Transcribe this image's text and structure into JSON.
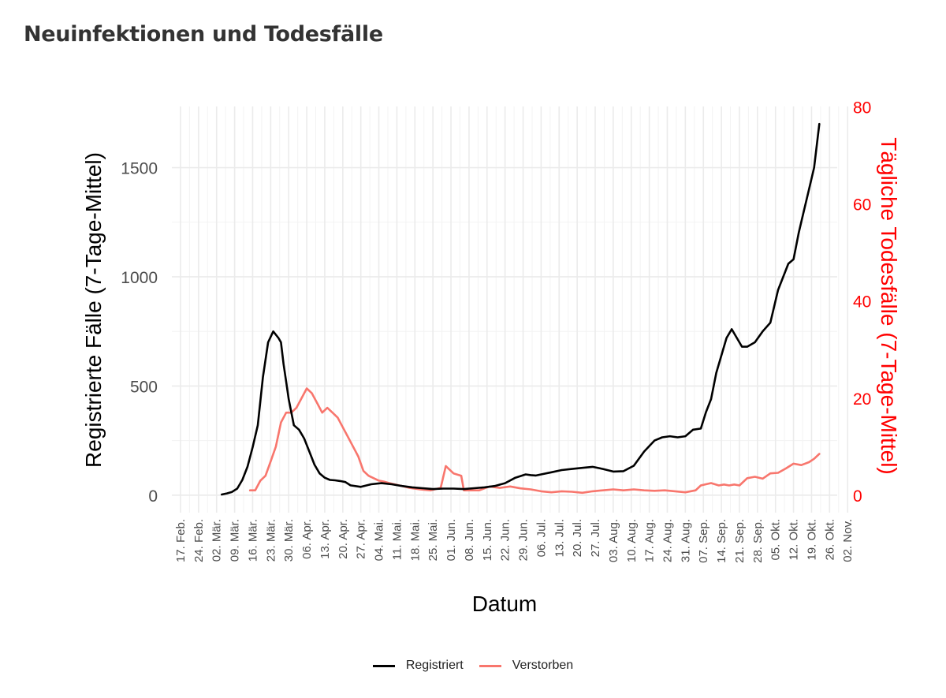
{
  "title": "Neuinfektionen und Todesfälle",
  "chart_data": {
    "type": "line",
    "xlabel": "Datum",
    "ylabel_left": "Registrierte Fälle (7-Tage-Mittel)",
    "ylabel_right": "Tägliche Todesfälle (7-Tage-Mittel)",
    "x_ticks": [
      "17. Feb.",
      "24. Feb.",
      "02. Mär.",
      "09. Mär.",
      "16. Mär.",
      "23. Mär.",
      "30. Mär.",
      "06. Apr.",
      "13. Apr.",
      "20. Apr.",
      "27. Apr.",
      "04. Mai.",
      "11. Mai.",
      "18. Mai.",
      "25. Mai.",
      "01. Jun.",
      "08. Jun.",
      "15. Jun.",
      "22. Jun.",
      "29. Jun.",
      "06. Jul.",
      "13. Jul.",
      "20. Jul.",
      "27. Jul.",
      "03. Aug.",
      "10. Aug.",
      "17. Aug.",
      "24. Aug.",
      "31. Aug.",
      "07. Sep.",
      "14. Sep.",
      "21. Sep.",
      "28. Sep.",
      "05. Okt.",
      "12. Okt.",
      "19. Okt.",
      "26. Okt.",
      "02. Nov."
    ],
    "y_left_ticks": [
      "0",
      "500",
      "1000",
      "1500"
    ],
    "y_left_range": [
      -80,
      1780
    ],
    "y_right_ticks": [
      "0",
      "20",
      "40",
      "60",
      "80"
    ],
    "y_right_range": [
      -3.6,
      80.1
    ],
    "grid": true,
    "legend_position": "bottom",
    "series": [
      {
        "name": "Registriert",
        "axis": "left",
        "color": "#000000",
        "x": [
          "2020-03-04",
          "2020-03-06",
          "2020-03-08",
          "2020-03-10",
          "2020-03-12",
          "2020-03-14",
          "2020-03-16",
          "2020-03-18",
          "2020-03-20",
          "2020-03-22",
          "2020-03-24",
          "2020-03-26",
          "2020-03-27",
          "2020-03-28",
          "2020-03-29",
          "2020-03-30",
          "2020-04-01",
          "2020-04-03",
          "2020-04-05",
          "2020-04-07",
          "2020-04-09",
          "2020-04-11",
          "2020-04-13",
          "2020-04-15",
          "2020-04-17",
          "2020-04-19",
          "2020-04-21",
          "2020-04-23",
          "2020-04-27",
          "2020-05-01",
          "2020-05-05",
          "2020-05-09",
          "2020-05-13",
          "2020-05-17",
          "2020-05-21",
          "2020-05-25",
          "2020-05-29",
          "2020-06-02",
          "2020-06-06",
          "2020-06-10",
          "2020-06-14",
          "2020-06-18",
          "2020-06-22",
          "2020-06-26",
          "2020-06-30",
          "2020-07-02",
          "2020-07-04",
          "2020-07-06",
          "2020-07-10",
          "2020-07-14",
          "2020-07-18",
          "2020-07-22",
          "2020-07-26",
          "2020-07-30",
          "2020-08-03",
          "2020-08-07",
          "2020-08-11",
          "2020-08-15",
          "2020-08-19",
          "2020-08-22",
          "2020-08-25",
          "2020-08-28",
          "2020-08-31",
          "2020-09-03",
          "2020-09-06",
          "2020-09-08",
          "2020-09-10",
          "2020-09-12",
          "2020-09-14",
          "2020-09-16",
          "2020-09-18",
          "2020-09-20",
          "2020-09-22",
          "2020-09-24",
          "2020-09-27",
          "2020-09-30",
          "2020-10-03",
          "2020-10-06",
          "2020-10-08",
          "2020-10-10",
          "2020-10-12",
          "2020-10-14",
          "2020-10-16",
          "2020-10-18",
          "2020-10-20",
          "2020-10-22"
        ],
        "values": [
          3,
          8,
          15,
          30,
          70,
          130,
          220,
          320,
          540,
          700,
          750,
          720,
          700,
          600,
          520,
          440,
          320,
          300,
          260,
          200,
          140,
          100,
          80,
          70,
          68,
          65,
          60,
          45,
          38,
          50,
          55,
          50,
          42,
          36,
          32,
          28,
          30,
          30,
          28,
          32,
          36,
          42,
          55,
          80,
          95,
          92,
          90,
          95,
          105,
          115,
          120,
          125,
          130,
          120,
          108,
          110,
          135,
          200,
          250,
          265,
          270,
          265,
          270,
          300,
          305,
          380,
          440,
          560,
          640,
          720,
          760,
          720,
          680,
          680,
          700,
          750,
          790,
          940,
          1000,
          1060,
          1080,
          1200,
          1300,
          1400,
          1500,
          1700
        ]
      },
      {
        "name": "Verstorben",
        "axis": "right",
        "color": "#f8766d",
        "x": [
          "2020-03-15",
          "2020-03-17",
          "2020-03-19",
          "2020-03-21",
          "2020-03-23",
          "2020-03-25",
          "2020-03-27",
          "2020-03-29",
          "2020-03-31",
          "2020-04-02",
          "2020-04-04",
          "2020-04-06",
          "2020-04-08",
          "2020-04-10",
          "2020-04-12",
          "2020-04-14",
          "2020-04-16",
          "2020-04-18",
          "2020-04-20",
          "2020-04-22",
          "2020-04-24",
          "2020-04-26",
          "2020-04-28",
          "2020-04-30",
          "2020-05-02",
          "2020-05-04",
          "2020-05-06",
          "2020-05-08",
          "2020-05-12",
          "2020-05-16",
          "2020-05-20",
          "2020-05-24",
          "2020-05-28",
          "2020-05-30",
          "2020-06-02",
          "2020-06-05",
          "2020-06-06",
          "2020-06-08",
          "2020-06-12",
          "2020-06-16",
          "2020-06-20",
          "2020-06-24",
          "2020-06-28",
          "2020-07-02",
          "2020-07-06",
          "2020-07-10",
          "2020-07-14",
          "2020-07-18",
          "2020-07-22",
          "2020-07-26",
          "2020-07-30",
          "2020-08-03",
          "2020-08-07",
          "2020-08-11",
          "2020-08-15",
          "2020-08-19",
          "2020-08-23",
          "2020-08-27",
          "2020-08-31",
          "2020-09-04",
          "2020-09-06",
          "2020-09-10",
          "2020-09-13",
          "2020-09-15",
          "2020-09-17",
          "2020-09-19",
          "2020-09-21",
          "2020-09-24",
          "2020-09-27",
          "2020-09-30",
          "2020-10-03",
          "2020-10-06",
          "2020-10-09",
          "2020-10-12",
          "2020-10-15",
          "2020-10-18",
          "2020-10-20",
          "2020-10-22"
        ],
        "values": [
          1,
          1,
          3,
          4,
          7,
          10,
          15,
          17,
          17,
          18,
          20,
          22,
          21,
          19,
          17,
          18,
          17,
          16,
          14,
          12,
          10,
          8,
          5,
          4,
          3.5,
          3,
          2.8,
          2.5,
          2,
          1.5,
          1.2,
          1,
          1.5,
          6,
          4.5,
          4,
          1,
          1,
          1,
          1.8,
          1.5,
          1.8,
          1.4,
          1.2,
          0.8,
          0.6,
          0.8,
          0.7,
          0.5,
          0.8,
          1.0,
          1.2,
          1.0,
          1.2,
          1.0,
          0.9,
          1.0,
          0.8,
          0.6,
          1.0,
          2.0,
          2.5,
          2.0,
          2.2,
          2.0,
          2.2,
          2.0,
          3.5,
          3.8,
          3.4,
          4.5,
          4.6,
          5.5,
          6.5,
          6.2,
          6.8,
          7.5,
          8.5
        ]
      }
    ]
  }
}
